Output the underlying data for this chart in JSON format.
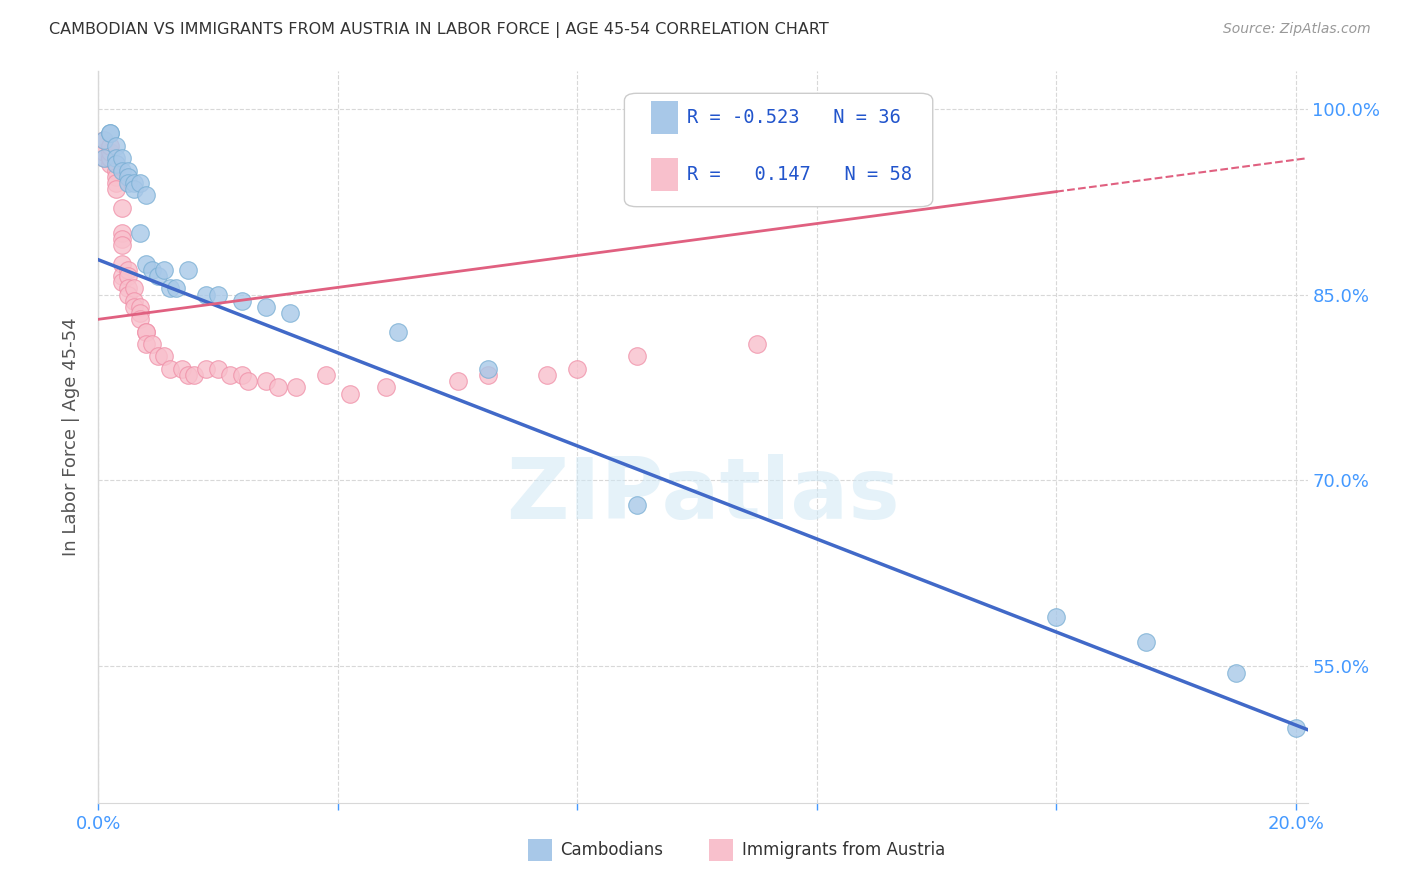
{
  "title": "CAMBODIAN VS IMMIGRANTS FROM AUSTRIA IN LABOR FORCE | AGE 45-54 CORRELATION CHART",
  "source": "Source: ZipAtlas.com",
  "ylabel": "In Labor Force | Age 45-54",
  "legend_r_blue": "-0.523",
  "legend_n_blue": "36",
  "legend_r_pink": "0.147",
  "legend_n_pink": "58",
  "blue_color": "#a8c8e8",
  "pink_color": "#f8c0cc",
  "blue_edge_color": "#7aafd4",
  "pink_edge_color": "#f090a8",
  "blue_line_color": "#4169c8",
  "pink_line_color": "#e06080",
  "background_color": "#ffffff",
  "grid_color": "#d8d8d8",
  "tick_color": "#4499ff",
  "ylabel_color": "#555555",
  "title_color": "#333333",
  "source_color": "#999999",
  "watermark_text": "ZIPatlas",
  "watermark_color": "#d0e8f5",
  "legend_text_color": "#2255cc",
  "xlim": [
    0.0,
    0.202
  ],
  "ylim": [
    0.44,
    1.03
  ],
  "y_ticks": [
    0.55,
    0.7,
    0.85,
    1.0
  ],
  "y_tick_labels": [
    "55.0%",
    "70.0%",
    "85.0%",
    "100.0%"
  ],
  "x_ticks": [
    0.0,
    0.04,
    0.08,
    0.12,
    0.16,
    0.2
  ],
  "blue_trend": [
    0.878,
    0.499
  ],
  "pink_trend": [
    0.83,
    0.96
  ],
  "cambodian_x": [
    0.001,
    0.001,
    0.002,
    0.002,
    0.003,
    0.003,
    0.003,
    0.004,
    0.004,
    0.005,
    0.005,
    0.005,
    0.006,
    0.006,
    0.007,
    0.007,
    0.008,
    0.008,
    0.009,
    0.01,
    0.011,
    0.012,
    0.013,
    0.015,
    0.018,
    0.02,
    0.024,
    0.028,
    0.032,
    0.05,
    0.065,
    0.09,
    0.16,
    0.175,
    0.19,
    0.2
  ],
  "cambodian_y": [
    0.96,
    0.975,
    0.98,
    0.98,
    0.97,
    0.96,
    0.955,
    0.96,
    0.95,
    0.95,
    0.945,
    0.94,
    0.94,
    0.935,
    0.94,
    0.9,
    0.93,
    0.875,
    0.87,
    0.865,
    0.87,
    0.855,
    0.855,
    0.87,
    0.85,
    0.85,
    0.845,
    0.84,
    0.835,
    0.82,
    0.79,
    0.68,
    0.59,
    0.57,
    0.545,
    0.5
  ],
  "austria_x": [
    0.001,
    0.001,
    0.001,
    0.002,
    0.002,
    0.002,
    0.002,
    0.002,
    0.003,
    0.003,
    0.003,
    0.003,
    0.003,
    0.003,
    0.004,
    0.004,
    0.004,
    0.004,
    0.004,
    0.004,
    0.004,
    0.005,
    0.005,
    0.005,
    0.005,
    0.006,
    0.006,
    0.006,
    0.007,
    0.007,
    0.007,
    0.008,
    0.008,
    0.008,
    0.009,
    0.01,
    0.011,
    0.012,
    0.014,
    0.015,
    0.016,
    0.018,
    0.02,
    0.022,
    0.024,
    0.025,
    0.028,
    0.03,
    0.033,
    0.038,
    0.042,
    0.048,
    0.06,
    0.065,
    0.075,
    0.08,
    0.09,
    0.11
  ],
  "austria_y": [
    0.96,
    0.965,
    0.975,
    0.955,
    0.96,
    0.96,
    0.965,
    0.97,
    0.955,
    0.955,
    0.95,
    0.945,
    0.94,
    0.935,
    0.92,
    0.9,
    0.895,
    0.89,
    0.875,
    0.865,
    0.86,
    0.87,
    0.865,
    0.855,
    0.85,
    0.855,
    0.845,
    0.84,
    0.84,
    0.835,
    0.83,
    0.82,
    0.82,
    0.81,
    0.81,
    0.8,
    0.8,
    0.79,
    0.79,
    0.785,
    0.785,
    0.79,
    0.79,
    0.785,
    0.785,
    0.78,
    0.78,
    0.775,
    0.775,
    0.785,
    0.77,
    0.775,
    0.78,
    0.785,
    0.785,
    0.79,
    0.8,
    0.81
  ]
}
